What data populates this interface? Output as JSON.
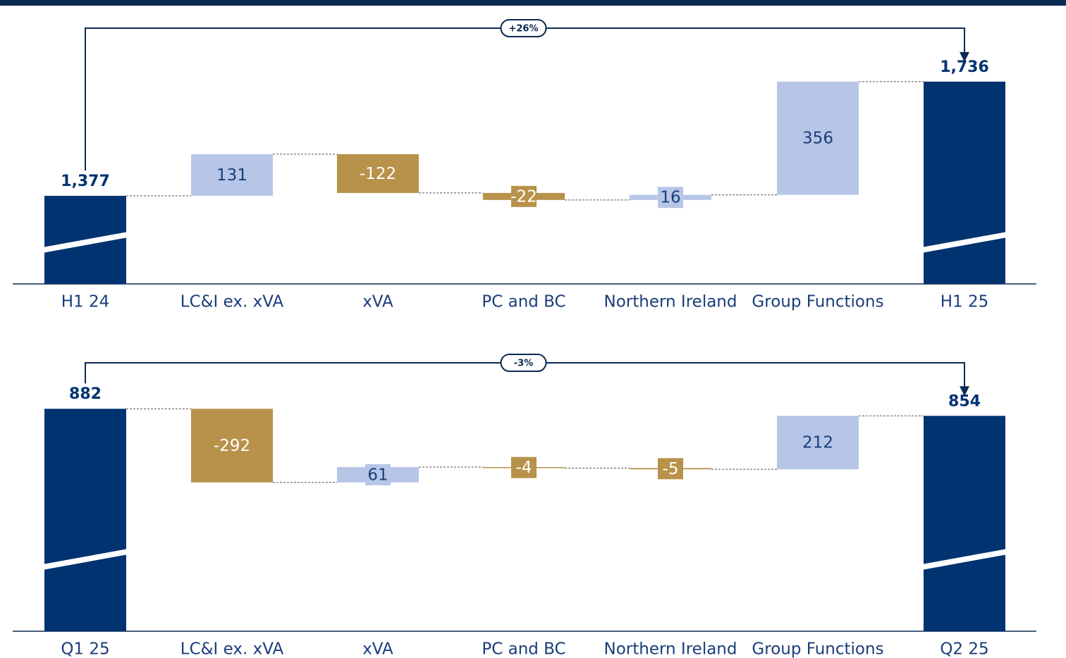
{
  "chart_data": [
    {
      "type": "waterfall",
      "categories": [
        "H1 24",
        "LC&I ex. xVA",
        "xVA",
        "PC and BC",
        "Northern Ireland",
        "Group Functions",
        "H1 25"
      ],
      "values": [
        1377,
        131,
        -122,
        -22,
        16,
        356,
        1736
      ],
      "value_labels": [
        "1,377",
        "131",
        "-122",
        "-22",
        "16",
        "356",
        "1,736"
      ],
      "measure": [
        "total",
        "relative",
        "relative",
        "relative",
        "relative",
        "relative",
        "total"
      ],
      "annotation": "+26%",
      "ylim": [
        1100,
        1800
      ],
      "total_color": "#003370",
      "increase_color": "#b7c6e7",
      "decrease_color": "#b8924a"
    },
    {
      "type": "waterfall",
      "categories": [
        "Q1 25",
        "LC&I ex. xVA",
        "xVA",
        "PC and BC",
        "Northern Ireland",
        "Group Functions",
        "Q2 25"
      ],
      "values": [
        882,
        -292,
        61,
        -4,
        -5,
        212,
        854
      ],
      "value_labels": [
        "882",
        "-292",
        "61",
        "-4",
        "-5",
        "212",
        "854"
      ],
      "measure": [
        "total",
        "relative",
        "relative",
        "relative",
        "relative",
        "relative",
        "total"
      ],
      "annotation": "-3%",
      "ylim": [
        0,
        1000
      ],
      "total_color": "#003370",
      "increase_color": "#b7c6e7",
      "decrease_color": "#b8924a"
    }
  ]
}
